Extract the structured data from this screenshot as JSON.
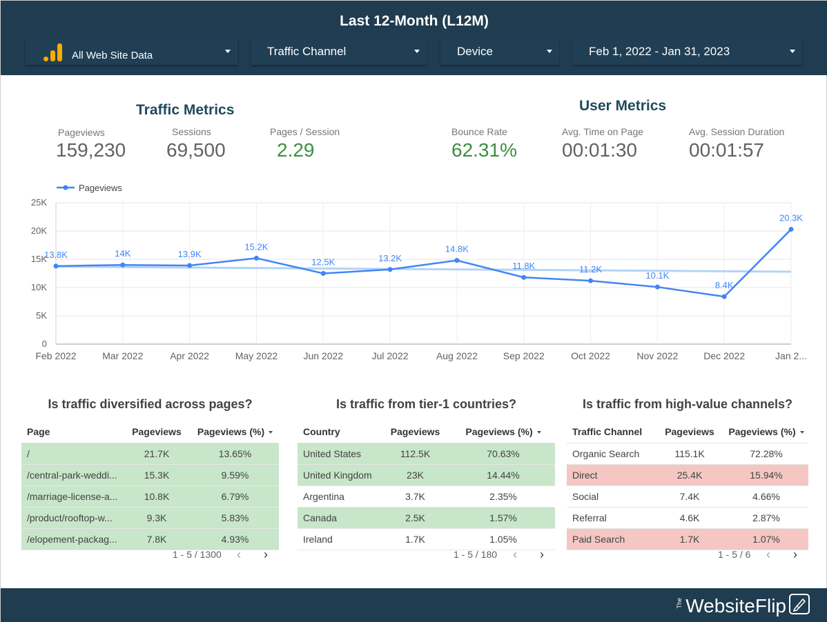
{
  "header": {
    "title": "Last 12-Month (L12M)",
    "filters": {
      "account": "All Web Site Data",
      "channel": "Traffic Channel",
      "device": "Device",
      "date_range": "Feb 1, 2022 - Jan 31, 2023"
    }
  },
  "traffic_metrics": {
    "title": "Traffic Metrics",
    "pageviews_label": "Pageviews",
    "pageviews_value": "159,230",
    "sessions_label": "Sessions",
    "sessions_value": "69,500",
    "pages_per_session_label": "Pages / Session",
    "pages_per_session_value": "2.29"
  },
  "user_metrics": {
    "title": "User Metrics",
    "bounce_rate_label": "Bounce Rate",
    "bounce_rate_value": "62.31%",
    "avg_time_label": "Avg. Time on Page",
    "avg_time_value": "00:01:30",
    "avg_session_label": "Avg. Session Duration",
    "avg_session_value": "00:01:57"
  },
  "chart_data": {
    "type": "line",
    "legend": "Pageviews",
    "legend_position": "top-left",
    "x": [
      "Feb 2022",
      "Mar 2022",
      "Apr 2022",
      "May 2022",
      "Jun 2022",
      "Jul 2022",
      "Aug 2022",
      "Sep 2022",
      "Oct 2022",
      "Nov 2022",
      "Dec 2022",
      "Jan 2..."
    ],
    "series": [
      {
        "name": "Pageviews",
        "values": [
          13800,
          14000,
          13900,
          15200,
          12500,
          13200,
          14800,
          11800,
          11200,
          10100,
          8400,
          20300
        ],
        "labels": [
          "13.8K",
          "14K",
          "13.9K",
          "15.2K",
          "12.5K",
          "13.2K",
          "14.8K",
          "11.8K",
          "11.2K",
          "10.1K",
          "8.4K",
          "20.3K"
        ],
        "color": "#4285f4"
      }
    ],
    "trendline": {
      "start": 13700,
      "end": 12800,
      "color": "#b3d4f5"
    },
    "yticks": [
      "0",
      "5K",
      "10K",
      "15K",
      "20K",
      "25K"
    ],
    "ylim": [
      0,
      25000
    ],
    "grid": true
  },
  "pages_table": {
    "title": "Is traffic diversified across pages?",
    "headers": [
      "Page",
      "Pageviews",
      "Pageviews (%)"
    ],
    "rows": [
      [
        "/",
        "21.7K",
        "13.65%"
      ],
      [
        "/central-park-weddi...",
        "15.3K",
        "9.59%"
      ],
      [
        "/marriage-license-a...",
        "10.8K",
        "6.79%"
      ],
      [
        "/product/rooftop-w...",
        "9.3K",
        "5.83%"
      ],
      [
        "/elopement-packag...",
        "7.8K",
        "4.93%"
      ]
    ],
    "pager": "1 - 5 / 1300"
  },
  "countries_table": {
    "title": "Is traffic from tier-1 countries?",
    "headers": [
      "Country",
      "Pageviews",
      "Pageviews (%)"
    ],
    "rows": [
      [
        "United States",
        "112.5K",
        "70.63%"
      ],
      [
        "United Kingdom",
        "23K",
        "14.44%"
      ],
      [
        "Argentina",
        "3.7K",
        "2.35%"
      ],
      [
        "Canada",
        "2.5K",
        "1.57%"
      ],
      [
        "Ireland",
        "1.7K",
        "1.05%"
      ]
    ],
    "pager": "1 - 5 / 180"
  },
  "channels_table": {
    "title": "Is traffic from high-value channels?",
    "headers": [
      "Traffic Channel",
      "Pageviews",
      "Pageviews (%)"
    ],
    "rows": [
      [
        "Organic Search",
        "115.1K",
        "72.28%"
      ],
      [
        "Direct",
        "25.4K",
        "15.94%"
      ],
      [
        "Social",
        "7.4K",
        "4.66%"
      ],
      [
        "Referral",
        "4.6K",
        "2.87%"
      ],
      [
        "Paid Search",
        "1.7K",
        "1.07%"
      ]
    ],
    "pager": "1 - 5 / 6"
  },
  "colors": {
    "header_bg": "#1f3c50",
    "green_row": "#c8e6c9",
    "red_row": "#f4c7c3",
    "line": "#4285f4",
    "metric_green": "#3e8e41"
  },
  "footer": {
    "brand": "WebsiteFlip",
    "brand_prefix": "The"
  }
}
